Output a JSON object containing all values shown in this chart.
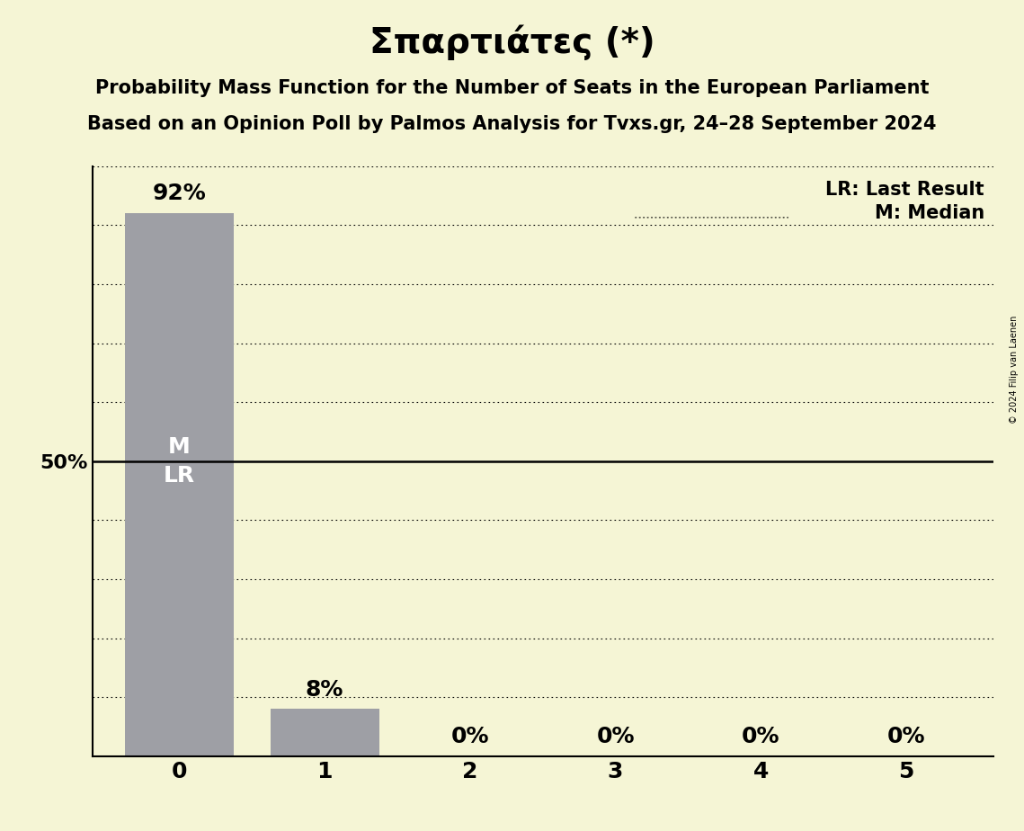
{
  "title": "Σπαρτιάτες (*)",
  "subtitle1": "Probability Mass Function for the Number of Seats in the European Parliament",
  "subtitle2": "Based on an Opinion Poll by Palmos Analysis for Tvxs.gr, 24–28 September 2024",
  "copyright": "© 2024 Filip van Laenen",
  "categories": [
    0,
    1,
    2,
    3,
    4,
    5
  ],
  "values": [
    0.92,
    0.08,
    0.0,
    0.0,
    0.0,
    0.0
  ],
  "bar_color": "#9e9fa5",
  "background_color": "#f5f5d5",
  "ylabel_50": "50%",
  "median_line_y": 0.5,
  "legend_lr": "LR: Last Result",
  "legend_m": "M: Median",
  "bar_labels": [
    "92%",
    "8%",
    "0%",
    "0%",
    "0%",
    "0%"
  ],
  "bar_label_inside": "M\nLR",
  "ylim": [
    0,
    1.0
  ],
  "title_fontsize": 28,
  "subtitle_fontsize": 15,
  "bar_label_fontsize": 16,
  "inside_label_fontsize": 18,
  "ylabel_fontsize": 16,
  "xtick_fontsize": 18,
  "legend_fontsize": 15
}
